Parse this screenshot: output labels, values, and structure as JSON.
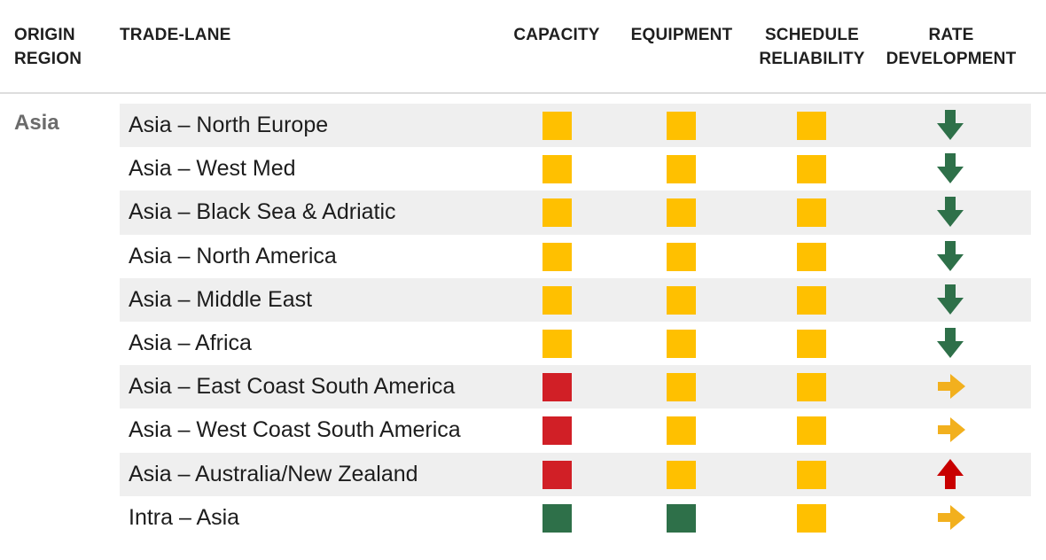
{
  "headers": {
    "origin_region": [
      "ORIGIN",
      "REGION"
    ],
    "trade_lane": "TRADE-LANE",
    "capacity": "CAPACITY",
    "equipment": "EQUIPMENT",
    "schedule_reliability": [
      "SCHEDULE",
      "RELIABILITY"
    ],
    "rate_development": [
      "RATE",
      "DEVELOPMENT"
    ]
  },
  "region": "Asia",
  "colors": {
    "yellow": "#FFC000",
    "red": "#D11F26",
    "green": "#2E7049",
    "arrow_down": "#2E7049",
    "arrow_right": "#F2B01E",
    "arrow_up": "#C80000"
  },
  "rows": [
    {
      "lane": "Asia – North Europe",
      "capacity": "yellow",
      "equipment": "yellow",
      "schedule_reliability": "yellow",
      "rate_development": "down"
    },
    {
      "lane": "Asia – West Med",
      "capacity": "yellow",
      "equipment": "yellow",
      "schedule_reliability": "yellow",
      "rate_development": "down"
    },
    {
      "lane": "Asia – Black Sea & Adriatic",
      "capacity": "yellow",
      "equipment": "yellow",
      "schedule_reliability": "yellow",
      "rate_development": "down"
    },
    {
      "lane": "Asia – North America",
      "capacity": "yellow",
      "equipment": "yellow",
      "schedule_reliability": "yellow",
      "rate_development": "down"
    },
    {
      "lane": "Asia – Middle East",
      "capacity": "yellow",
      "equipment": "yellow",
      "schedule_reliability": "yellow",
      "rate_development": "down"
    },
    {
      "lane": "Asia – Africa",
      "capacity": "yellow",
      "equipment": "yellow",
      "schedule_reliability": "yellow",
      "rate_development": "down"
    },
    {
      "lane": "Asia – East Coast South America",
      "capacity": "red",
      "equipment": "yellow",
      "schedule_reliability": "yellow",
      "rate_development": "right"
    },
    {
      "lane": "Asia – West Coast South America",
      "capacity": "red",
      "equipment": "yellow",
      "schedule_reliability": "yellow",
      "rate_development": "right"
    },
    {
      "lane": "Asia – Australia/New Zealand",
      "capacity": "red",
      "equipment": "yellow",
      "schedule_reliability": "yellow",
      "rate_development": "up"
    },
    {
      "lane": "Intra – Asia",
      "capacity": "green",
      "equipment": "green",
      "schedule_reliability": "yellow",
      "rate_development": "right"
    }
  ]
}
